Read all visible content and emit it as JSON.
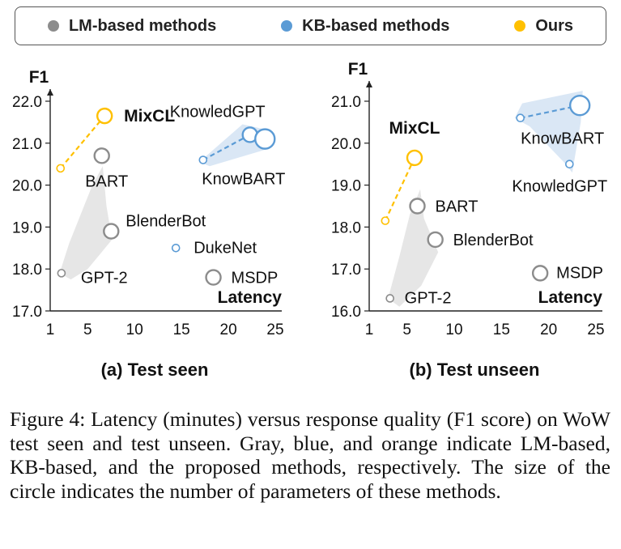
{
  "legend": [
    {
      "label": "LM-based methods",
      "color": "#8c8c8c"
    },
    {
      "label": "KB-based methods",
      "color": "#5b9bd5"
    },
    {
      "label": "Ours",
      "color": "#ffc000"
    }
  ],
  "caption": "Figure 4: Latency (minutes) versus response quality (F1 score) on WoW test seen and test unseen. Gray, blue, and orange indicate LM-based, KB-based, and the proposed methods, respectively. The size of the circle indicates the number of parameters of these methods.",
  "colors": {
    "lm": "#8c8c8c",
    "kb": "#5b9bd5",
    "ours": "#ffc000",
    "lm_fill": "#e6e6e6",
    "kb_fill": "#dae7f5"
  },
  "chart_data": [
    {
      "type": "scatter",
      "title": "(a) Test seen",
      "ylabel": "F1",
      "xlabel": "Latency",
      "xlim": [
        1,
        25
      ],
      "ylim": [
        17.0,
        22.0
      ],
      "xticks": [
        1,
        5,
        10,
        15,
        20,
        25
      ],
      "yticks": [
        "17.0",
        "18.0",
        "19.0",
        "20.0",
        "21.0",
        "22.0"
      ],
      "points": [
        {
          "name": "GPT-2",
          "group": "lm",
          "x": 2.2,
          "y": 17.9,
          "size": "small"
        },
        {
          "name": "BlenderBot",
          "group": "lm",
          "x": 7.5,
          "y": 18.9,
          "size": "medium"
        },
        {
          "name": "BART",
          "group": "lm",
          "x": 6.5,
          "y": 20.7,
          "size": "medium"
        },
        {
          "name": "DukeNet",
          "group": "kb",
          "x": 14.4,
          "y": 18.5,
          "size": "small"
        },
        {
          "name": "MSDP",
          "group": "lm",
          "x": 18.4,
          "y": 17.8,
          "size": "medium"
        },
        {
          "name": "KnowBART",
          "group": "kb",
          "x": 17.3,
          "y": 20.6,
          "size": "small"
        },
        {
          "name": "KnowledGPT",
          "group": "kb",
          "x": 22.3,
          "y": 21.2,
          "size": "medium"
        },
        {
          "name": "",
          "group": "kb",
          "x": 23.9,
          "y": 21.1,
          "size": "large"
        },
        {
          "name": "",
          "group": "ours",
          "x": 2.1,
          "y": 20.4,
          "size": "small"
        },
        {
          "name": "MixCL",
          "group": "ours",
          "x": 6.8,
          "y": 21.65,
          "size": "medium"
        }
      ]
    },
    {
      "type": "scatter",
      "title": "(b) Test unseen",
      "ylabel": "F1",
      "xlabel": "Latency",
      "xlim": [
        1,
        25
      ],
      "ylim": [
        16.0,
        21.0
      ],
      "xticks": [
        1,
        5,
        10,
        15,
        20,
        25
      ],
      "yticks": [
        "16.0",
        "17.0",
        "18.0",
        "19.0",
        "20.0",
        "21.0"
      ],
      "points": [
        {
          "name": "GPT-2",
          "group": "lm",
          "x": 3.2,
          "y": 16.3,
          "size": "small"
        },
        {
          "name": "BlenderBot",
          "group": "lm",
          "x": 8.0,
          "y": 17.7,
          "size": "medium"
        },
        {
          "name": "BART",
          "group": "lm",
          "x": 6.1,
          "y": 18.5,
          "size": "medium"
        },
        {
          "name": "MSDP",
          "group": "lm",
          "x": 19.1,
          "y": 16.9,
          "size": "medium"
        },
        {
          "name": "KnowBART",
          "group": "kb",
          "x": 17.0,
          "y": 20.6,
          "size": "small"
        },
        {
          "name": "",
          "group": "kb",
          "x": 23.3,
          "y": 20.9,
          "size": "large"
        },
        {
          "name": "KnowledGPT",
          "group": "kb",
          "x": 22.2,
          "y": 19.5,
          "size": "small"
        },
        {
          "name": "",
          "group": "ours",
          "x": 2.7,
          "y": 18.15,
          "size": "small"
        },
        {
          "name": "MixCL",
          "group": "ours",
          "x": 5.8,
          "y": 19.65,
          "size": "medium"
        }
      ]
    }
  ]
}
